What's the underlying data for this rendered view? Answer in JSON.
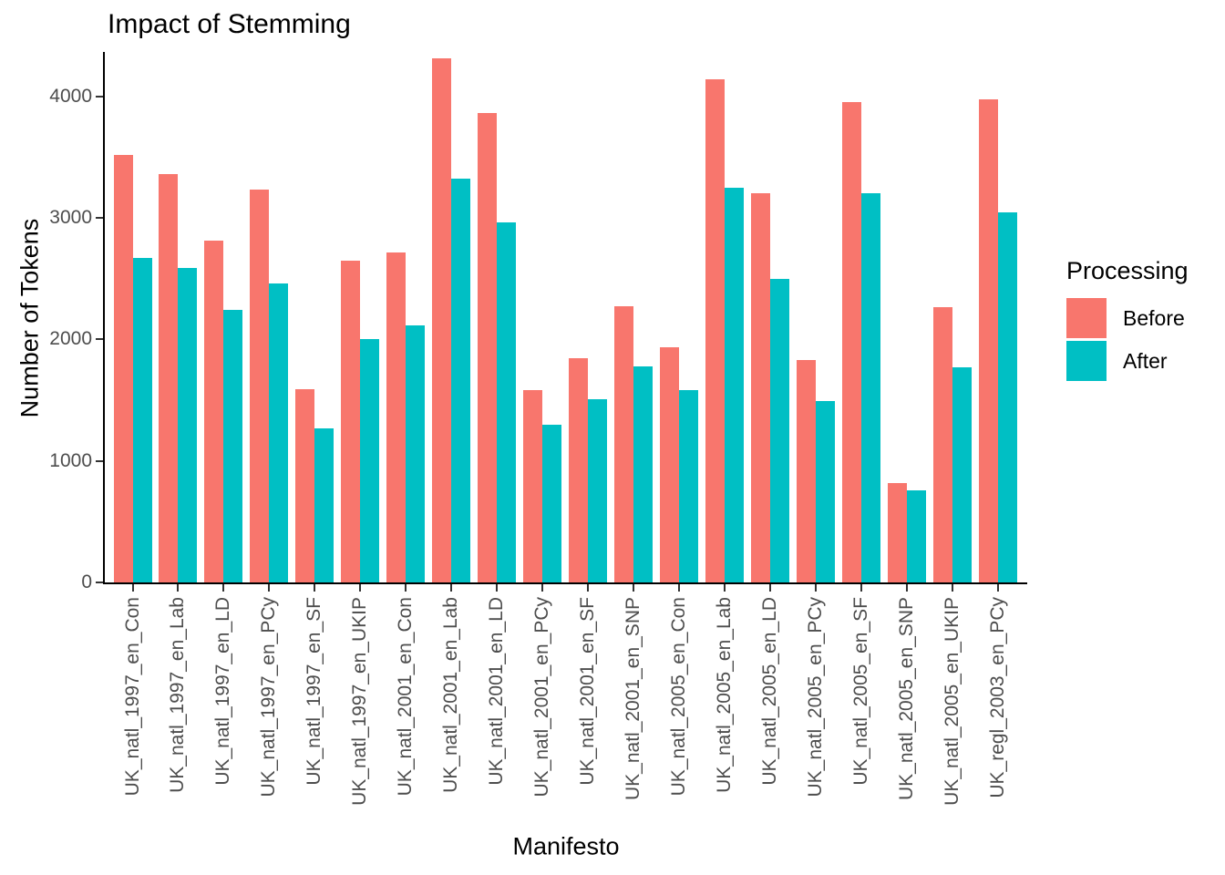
{
  "chart_data": {
    "type": "bar",
    "title": "Impact of Stemming",
    "xlabel": "Manifesto",
    "ylabel": "Number of Tokens",
    "ylim": [
      0,
      4360
    ],
    "yticks": [
      0,
      1000,
      2000,
      3000,
      4000
    ],
    "grid": false,
    "legend_title": "Processing",
    "legend_position": "right",
    "categories": [
      "UK_natl_1997_en_Con",
      "UK_natl_1997_en_Lab",
      "UK_natl_1997_en_LD",
      "UK_natl_1997_en_PCy",
      "UK_natl_1997_en_SF",
      "UK_natl_1997_en_UKIP",
      "UK_natl_2001_en_Con",
      "UK_natl_2001_en_Lab",
      "UK_natl_2001_en_LD",
      "UK_natl_2001_en_PCy",
      "UK_natl_2001_en_SF",
      "UK_natl_2001_en_SNP",
      "UK_natl_2005_en_Con",
      "UK_natl_2005_en_Lab",
      "UK_natl_2005_en_LD",
      "UK_natl_2005_en_PCy",
      "UK_natl_2005_en_SF",
      "UK_natl_2005_en_SNP",
      "UK_natl_2005_en_UKIP",
      "UK_regl_2003_en_PCy"
    ],
    "series": [
      {
        "name": "Before",
        "color": "#F8766D",
        "values": [
          3515,
          3360,
          2810,
          3235,
          1590,
          2650,
          2715,
          4310,
          3860,
          1580,
          1845,
          2275,
          1935,
          4140,
          3200,
          1830,
          3955,
          820,
          2265,
          3975
        ]
      },
      {
        "name": "After",
        "color": "#00BFC4",
        "values": [
          2670,
          2585,
          2240,
          2460,
          1270,
          2000,
          2115,
          3320,
          2965,
          1300,
          1510,
          1775,
          1580,
          3245,
          2495,
          1495,
          3200,
          760,
          1770,
          3045
        ]
      }
    ]
  },
  "colors": {
    "background": "#FFFFFF",
    "axis": "#000000",
    "tick": "#333333",
    "tick_label": "#4D4D4D",
    "title_text": "#000000",
    "before": "#F8766D",
    "after": "#00BFC4"
  }
}
